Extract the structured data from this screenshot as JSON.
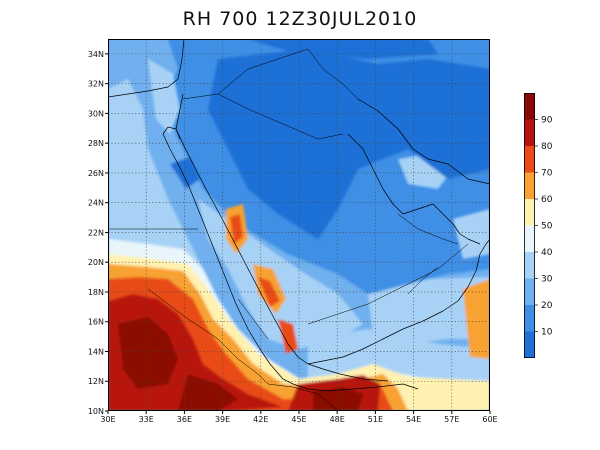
{
  "title": "RH 700 12Z30JUL2010",
  "map": {
    "lon_range": [
      30,
      60
    ],
    "lat_range": [
      10,
      35
    ],
    "lon_ticks": [
      "30E",
      "33E",
      "36E",
      "39E",
      "42E",
      "45E",
      "48E",
      "51E",
      "54E",
      "57E",
      "60E"
    ],
    "lat_ticks": [
      "10N",
      "12N",
      "14N",
      "16N",
      "18N",
      "20N",
      "22N",
      "24N",
      "26N",
      "28N",
      "30N",
      "32N",
      "34N"
    ],
    "gridlines": "dotted",
    "field": "relative humidity at 700 hPa (%)"
  },
  "legend": {
    "levels": [
      "10",
      "20",
      "30",
      "40",
      "50",
      "60",
      "70",
      "80",
      "90"
    ],
    "colors": [
      "#1e6fd6",
      "#3f8fe6",
      "#6fb0ef",
      "#a7d2f6",
      "#e8f6fc",
      "#fff1b0",
      "#f7a232",
      "#e94b19",
      "#b8140f",
      "#8a0806"
    ]
  },
  "colors": {
    "frame": "#000000",
    "coast": "#000000"
  }
}
